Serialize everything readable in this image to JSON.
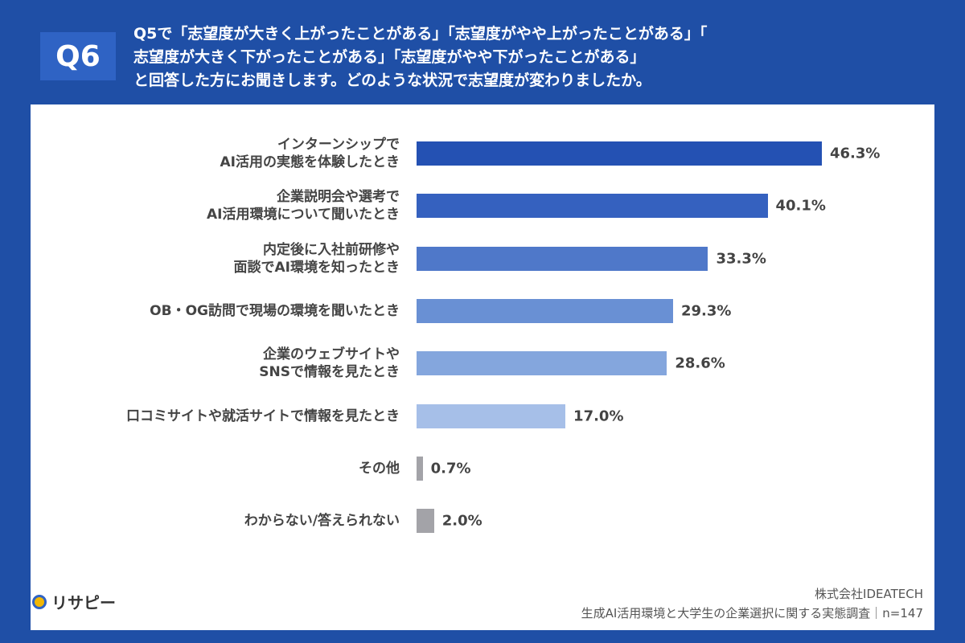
{
  "badge": "Q6",
  "logo": "リサピー",
  "footer": {
    "company": "株式会社IDEATECH",
    "survey": "生成AI活用環境と大学生の企業選択に関する実態調査｜n=147"
  },
  "chart_data": {
    "type": "bar",
    "orientation": "horizontal",
    "title": "Q5で「志望度が大きく上がったことがある」「志望度がやや上がったことがある」「\n志望度が大きく下がったことがある」「志望度がやや下がったことがある」\nと回答した方にお聞きします。どのような状況で志望度が変わりましたか。",
    "categories": [
      "インターンシップで\nAI活用の実態を体験したとき",
      "企業説明会や選考で\nAI活用環境について聞いたとき",
      "内定後に入社前研修や\n面談でAI環境を知ったとき",
      "OB・OG訪問で現場の環境を聞いたとき",
      "企業のウェブサイトや\nSNSで情報を見たとき",
      "口コミサイトや就活サイトで情報を見たとき",
      "その他",
      "わからない/答えられない"
    ],
    "values": [
      46.3,
      40.1,
      33.3,
      29.3,
      28.6,
      17.0,
      0.7,
      2.0
    ],
    "value_labels": [
      "46.3%",
      "40.1%",
      "33.3%",
      "29.3%",
      "28.6%",
      "17.0%",
      "0.7%",
      "2.0%"
    ],
    "colors": [
      "#2451b3",
      "#3561bf",
      "#4f78c9",
      "#6990d4",
      "#84a6dd",
      "#a6bfe8",
      "#a3a3a8",
      "#a3a3a8"
    ]
  }
}
